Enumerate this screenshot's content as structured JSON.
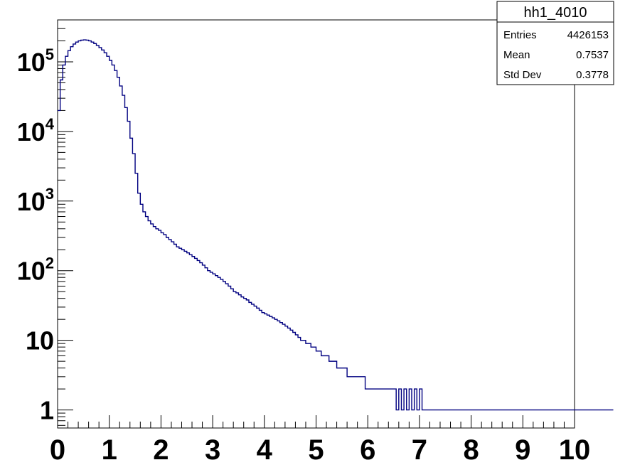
{
  "stats_box": {
    "title": "hh1_4010",
    "rows": [
      {
        "label": "Entries",
        "value": "4426153"
      },
      {
        "label": "Mean",
        "value": "0.7537"
      },
      {
        "label": "Std Dev",
        "value": "0.3778"
      }
    ]
  },
  "chart_data": {
    "type": "histogram",
    "title": "",
    "xlabel": "",
    "ylabel": "",
    "xlim": [
      0,
      10
    ],
    "ylim": [
      0.55,
      400000
    ],
    "yscale": "log",
    "grid": false,
    "legend": "none",
    "line_color": "#000080",
    "bin_width": 0.05,
    "x_ticks": [
      "0",
      "1",
      "2",
      "3",
      "4",
      "5",
      "6",
      "7",
      "8",
      "9",
      "10"
    ],
    "y_ticks": [
      {
        "value": 1,
        "base": "1",
        "exp": ""
      },
      {
        "value": 10,
        "base": "10",
        "exp": ""
      },
      {
        "value": 100,
        "base": "10",
        "exp": "2"
      },
      {
        "value": 1000,
        "base": "10",
        "exp": "3"
      },
      {
        "value": 10000,
        "base": "10",
        "exp": "4"
      },
      {
        "value": 100000,
        "base": "10",
        "exp": "5"
      }
    ],
    "values": [
      20000,
      55000,
      90000,
      120000,
      145000,
      165000,
      180000,
      192000,
      200000,
      205000,
      207000,
      205000,
      200000,
      192000,
      183000,
      172000,
      160000,
      148000,
      135000,
      120000,
      105000,
      90000,
      75000,
      60000,
      45000,
      33000,
      22000,
      14000,
      8000,
      4800,
      2500,
      1300,
      900,
      700,
      600,
      520,
      470,
      430,
      400,
      380,
      350,
      330,
      300,
      280,
      260,
      240,
      220,
      210,
      200,
      190,
      180,
      170,
      160,
      150,
      140,
      130,
      120,
      110,
      100,
      95,
      90,
      85,
      80,
      75,
      70,
      65,
      60,
      55,
      50,
      48,
      45,
      42,
      40,
      38,
      35,
      33,
      31,
      29,
      27,
      25,
      24,
      23,
      22,
      21,
      20,
      19,
      18,
      17,
      16,
      15,
      14,
      13,
      12,
      11,
      10,
      10,
      9,
      9,
      8,
      8,
      7,
      7,
      6,
      6,
      6,
      5,
      5,
      5,
      4,
      4,
      4,
      4,
      3,
      3,
      3,
      3,
      3,
      3,
      3,
      2,
      2,
      2,
      2,
      2,
      2,
      2,
      2,
      2,
      2,
      2,
      2,
      1,
      2,
      1,
      2,
      1,
      2,
      1,
      2,
      1,
      2,
      1,
      1,
      1,
      1,
      1,
      1,
      1,
      1,
      1,
      1,
      1,
      1,
      1,
      1,
      1,
      1,
      1,
      1,
      1,
      1,
      1,
      1,
      1,
      1,
      1,
      1,
      1,
      1,
      1,
      1,
      1,
      1,
      1,
      1,
      1,
      1,
      1,
      1,
      1,
      1,
      1,
      1,
      1,
      1,
      1,
      1,
      1,
      1,
      1,
      1,
      1,
      1,
      1,
      1,
      1,
      1,
      1,
      1,
      1,
      1,
      1,
      1,
      1,
      1,
      1,
      1,
      1,
      1,
      1,
      1,
      1,
      1,
      1,
      1
    ]
  }
}
